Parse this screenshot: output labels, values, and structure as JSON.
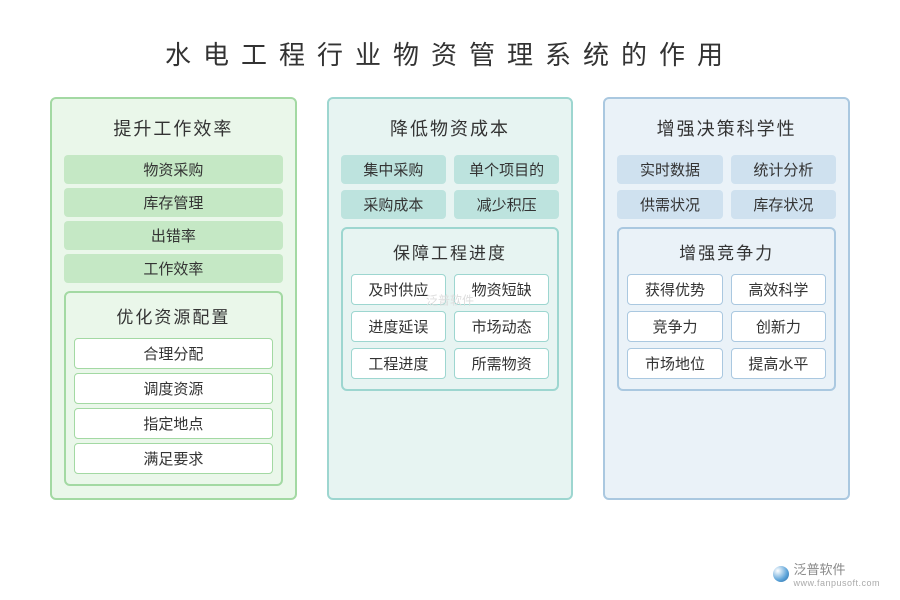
{
  "title": "水电工程行业物资管理系统的作用",
  "columns": [
    {
      "key": "green",
      "sections": [
        {
          "title": "提升工作效率",
          "layout": "col",
          "chipStyle": "chip-green",
          "items": [
            "物资采购",
            "库存管理",
            "出错率",
            "工作效率"
          ]
        },
        {
          "title": "优化资源配置",
          "boxed": true,
          "layout": "col",
          "chipStyle": "chip-white-g",
          "items": [
            "合理分配",
            "调度资源",
            "指定地点",
            "满足要求"
          ]
        }
      ]
    },
    {
      "key": "teal",
      "sections": [
        {
          "title": "降低物资成本",
          "layout": "grid",
          "chipStyle": "chip-teal",
          "items": [
            "集中采购",
            "单个项目的",
            "采购成本",
            "减少积压"
          ]
        },
        {
          "title": "保障工程进度",
          "boxed": true,
          "layout": "grid",
          "chipStyle": "chip-white-t",
          "items": [
            "及时供应",
            "物资短缺",
            "进度延误",
            "市场动态",
            "工程进度",
            "所需物资"
          ]
        }
      ]
    },
    {
      "key": "blue",
      "sections": [
        {
          "title": "增强决策科学性",
          "layout": "grid",
          "chipStyle": "chip-blue",
          "items": [
            "实时数据",
            "统计分析",
            "供需状况",
            "库存状况"
          ]
        },
        {
          "title": "增强竞争力",
          "boxed": true,
          "layout": "grid",
          "chipStyle": "chip-white-b",
          "items": [
            "获得优势",
            "高效科学",
            "竞争力",
            "创新力",
            "市场地位",
            "提高水平"
          ]
        }
      ]
    }
  ],
  "watermark": {
    "brand": "泛普软件",
    "url": "www.fanpusoft.com",
    "center": "泛普软件"
  },
  "colors": {
    "green": {
      "border": "#a3d9a3",
      "bg": "#eaf7ea",
      "chip": "#c5e8c5"
    },
    "teal": {
      "border": "#9dd6d0",
      "bg": "#e7f4f2",
      "chip": "#bde3de"
    },
    "blue": {
      "border": "#aac8e0",
      "bg": "#eaf2f8",
      "chip": "#cfe1ef"
    }
  }
}
